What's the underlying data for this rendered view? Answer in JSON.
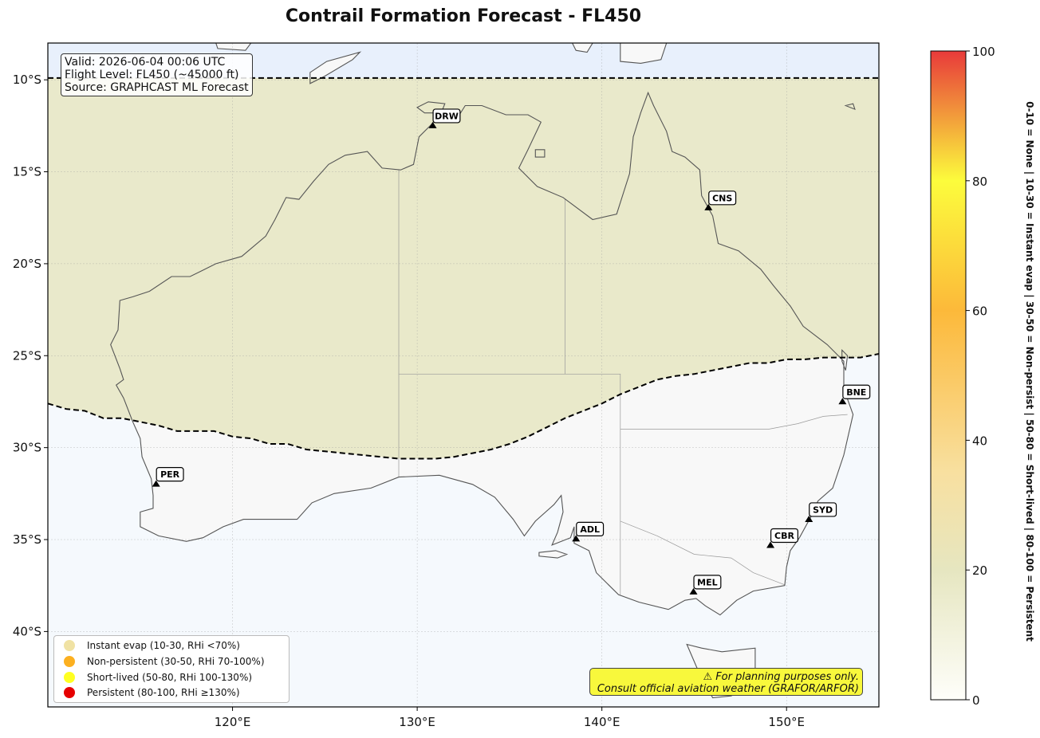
{
  "title": "Contrail Formation Forecast - FL450",
  "info": {
    "valid": "Valid: 2026-06-04 00:06 UTC",
    "flight_level": "Flight Level: FL450 (~45000 ft)",
    "source": "Source: GRAPHCAST ML Forecast"
  },
  "map": {
    "lon_range": [
      110,
      155
    ],
    "lat_range": [
      -44.1,
      -8.0
    ],
    "lon_ticks": [
      120,
      130,
      140,
      150
    ],
    "lon_tick_labels": [
      "120°E",
      "130°E",
      "140°E",
      "150°E"
    ],
    "lat_ticks": [
      -10,
      -15,
      -20,
      -25,
      -30,
      -35,
      -40
    ],
    "lat_tick_labels": [
      "10°S",
      "15°S",
      "20°S",
      "25°S",
      "30°S",
      "35°S",
      "40°S"
    ],
    "colors": {
      "ocean": "#f5f9fd",
      "land": "#f8f8f8",
      "contrail_zone": "#e6e6c2",
      "far_north_band": "#e8f0fc",
      "coastline": "#555555"
    }
  },
  "cities": [
    {
      "code": "DRW",
      "lon": 130.84,
      "lat": -12.46
    },
    {
      "code": "CNS",
      "lon": 145.77,
      "lat": -16.92
    },
    {
      "code": "BNE",
      "lon": 153.03,
      "lat": -27.47
    },
    {
      "code": "PER",
      "lon": 115.86,
      "lat": -31.95
    },
    {
      "code": "ADL",
      "lon": 138.6,
      "lat": -34.93
    },
    {
      "code": "SYD",
      "lon": 151.21,
      "lat": -33.87
    },
    {
      "code": "CBR",
      "lon": 149.13,
      "lat": -35.28
    },
    {
      "code": "MEL",
      "lon": 144.96,
      "lat": -37.81
    }
  ],
  "contrail_boundary": {
    "style": "dashed",
    "north_line_lat": -9.9,
    "southern_edge": [
      [
        110,
        -27.6
      ],
      [
        111,
        -27.9
      ],
      [
        112,
        -28.0
      ],
      [
        113,
        -28.4
      ],
      [
        114,
        -28.4
      ],
      [
        115,
        -28.6
      ],
      [
        116,
        -28.8
      ],
      [
        117,
        -29.1
      ],
      [
        118,
        -29.1
      ],
      [
        119,
        -29.1
      ],
      [
        120,
        -29.4
      ],
      [
        121,
        -29.5
      ],
      [
        122,
        -29.8
      ],
      [
        123,
        -29.8
      ],
      [
        124,
        -30.1
      ],
      [
        125,
        -30.2
      ],
      [
        126,
        -30.3
      ],
      [
        127,
        -30.4
      ],
      [
        128,
        -30.5
      ],
      [
        129,
        -30.6
      ],
      [
        130,
        -30.6
      ],
      [
        131,
        -30.6
      ],
      [
        132,
        -30.5
      ],
      [
        133,
        -30.3
      ],
      [
        134,
        -30.1
      ],
      [
        135,
        -29.8
      ],
      [
        136,
        -29.4
      ],
      [
        137,
        -28.9
      ],
      [
        138,
        -28.4
      ],
      [
        139,
        -28.0
      ],
      [
        140,
        -27.6
      ],
      [
        141,
        -27.1
      ],
      [
        142,
        -26.7
      ],
      [
        143,
        -26.3
      ],
      [
        144,
        -26.1
      ],
      [
        145,
        -26.0
      ],
      [
        146,
        -25.8
      ],
      [
        147,
        -25.6
      ],
      [
        148,
        -25.4
      ],
      [
        149,
        -25.4
      ],
      [
        150,
        -25.2
      ],
      [
        151,
        -25.2
      ],
      [
        152,
        -25.1
      ],
      [
        153,
        -25.1
      ],
      [
        154,
        -25.1
      ],
      [
        155,
        -24.9
      ]
    ]
  },
  "colorbar": {
    "min": 0,
    "max": 100,
    "ticks": [
      0,
      20,
      40,
      60,
      80,
      100
    ],
    "tick_labels": [
      "0",
      "20",
      "40",
      "60",
      "80",
      "100"
    ],
    "label": "0-10 = None  |  10-30 = Instant evap  |  30-50 = Non-persist  |  50-80 = Short-lived  |  80-100 = Persistent",
    "stops": [
      {
        "value": 0,
        "color": "#fefefa"
      },
      {
        "value": 20,
        "color": "#e6e6c0"
      },
      {
        "value": 35,
        "color": "#f8e0a0"
      },
      {
        "value": 60,
        "color": "#fcb93a"
      },
      {
        "value": 80,
        "color": "#fcfc3c"
      },
      {
        "value": 100,
        "color": "#e83a3a"
      }
    ]
  },
  "legend": [
    {
      "label": "Instant evap (10-30, RHi <70%)",
      "color": "#f0e2a4"
    },
    {
      "label": "Non-persistent (30-50, RHi 70-100%)",
      "color": "#fcb020"
    },
    {
      "label": "Short-lived (50-80, RHi 100-130%)",
      "color": "#ffff22"
    },
    {
      "label": "Persistent (80-100, RHi ≥130%)",
      "color": "#e60000"
    }
  ],
  "disclaimer": {
    "line1": "⚠ For planning purposes only.",
    "line2": "Consult official aviation weather (GRAFOR/ARFOR)"
  }
}
